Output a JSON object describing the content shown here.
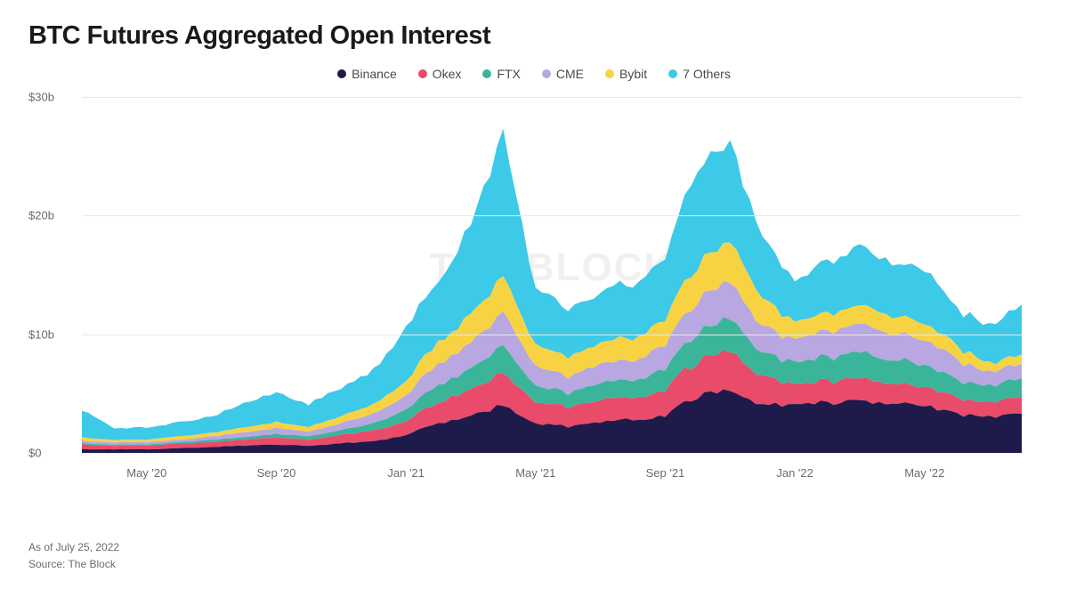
{
  "title": "BTC Futures Aggregated Open Interest",
  "watermark": "THE BLOCK",
  "footer_date": "As of July 25, 2022",
  "footer_source": "Source: The Block",
  "chart": {
    "type": "stacked-area",
    "background_color": "#ffffff",
    "grid_color": "#e8e8e8",
    "text_color": "#6b6b6b",
    "title_color": "#1a1a1a",
    "title_fontsize": 29,
    "label_fontsize": 13,
    "ylim": [
      0,
      30
    ],
    "ytick_step": 10,
    "yticks": [
      {
        "v": 0,
        "label": "$0"
      },
      {
        "v": 10,
        "label": "$10b"
      },
      {
        "v": 20,
        "label": "$20b"
      },
      {
        "v": 30,
        "label": "$30b"
      }
    ],
    "xticks": [
      {
        "idx": 2,
        "label": "May '20"
      },
      {
        "idx": 6,
        "label": "Sep '20"
      },
      {
        "idx": 10,
        "label": "Jan '21"
      },
      {
        "idx": 14,
        "label": "May '21"
      },
      {
        "idx": 18,
        "label": "Sep '21"
      },
      {
        "idx": 22,
        "label": "Jan '22"
      },
      {
        "idx": 26,
        "label": "May '22"
      }
    ],
    "n_points": 30,
    "series": [
      {
        "name": "Binance",
        "color": "#1e1a4a"
      },
      {
        "name": "Okex",
        "color": "#e94b6a"
      },
      {
        "name": "FTX",
        "color": "#3bb59a"
      },
      {
        "name": "CME",
        "color": "#b8a7e0"
      },
      {
        "name": "Bybit",
        "color": "#f7d344"
      },
      {
        "name": "7 Others",
        "color": "#3dc9e8"
      }
    ],
    "data_comment": "Values in $b. Each row is one time-point, columns match series order above.",
    "stacked_values": [
      [
        0.3,
        0.4,
        0.1,
        0.2,
        0.3,
        2.3
      ],
      [
        0.3,
        0.3,
        0.1,
        0.2,
        0.2,
        1.0
      ],
      [
        0.3,
        0.3,
        0.1,
        0.2,
        0.2,
        1.0
      ],
      [
        0.4,
        0.4,
        0.1,
        0.2,
        0.3,
        1.2
      ],
      [
        0.5,
        0.4,
        0.2,
        0.3,
        0.3,
        1.4
      ],
      [
        0.6,
        0.5,
        0.2,
        0.4,
        0.4,
        2.0
      ],
      [
        0.7,
        0.6,
        0.3,
        0.5,
        0.5,
        2.5
      ],
      [
        0.6,
        0.5,
        0.3,
        0.4,
        0.4,
        1.9
      ],
      [
        0.8,
        0.7,
        0.4,
        0.6,
        0.6,
        2.4
      ],
      [
        1.0,
        0.9,
        0.6,
        0.8,
        0.8,
        2.9
      ],
      [
        1.5,
        1.2,
        1.0,
        1.2,
        1.2,
        4.4
      ],
      [
        2.5,
        1.8,
        1.5,
        1.8,
        1.8,
        5.1
      ],
      [
        3.2,
        2.2,
        1.8,
        2.2,
        2.4,
        7.7
      ],
      [
        4.0,
        2.8,
        2.2,
        2.8,
        3.0,
        12.2
      ],
      [
        2.5,
        1.8,
        1.4,
        1.6,
        1.8,
        4.9
      ],
      [
        2.2,
        1.6,
        1.2,
        1.4,
        1.6,
        4.0
      ],
      [
        2.6,
        1.8,
        1.4,
        1.6,
        1.8,
        4.3
      ],
      [
        2.8,
        1.9,
        1.5,
        1.7,
        1.9,
        4.7
      ],
      [
        3.2,
        2.2,
        1.8,
        2.0,
        2.2,
        5.1
      ],
      [
        4.8,
        3.0,
        2.4,
        2.8,
        3.0,
        8.0
      ],
      [
        5.5,
        3.4,
        2.8,
        3.2,
        3.4,
        8.2
      ],
      [
        4.0,
        2.4,
        2.0,
        2.2,
        2.4,
        5.0
      ],
      [
        4.0,
        1.7,
        1.9,
        2.0,
        1.4,
        3.5
      ],
      [
        4.2,
        1.8,
        2.0,
        2.2,
        1.5,
        4.3
      ],
      [
        4.5,
        1.9,
        2.2,
        2.4,
        1.6,
        4.9
      ],
      [
        4.2,
        1.7,
        2.0,
        2.2,
        1.5,
        4.4
      ],
      [
        4.0,
        1.6,
        1.9,
        2.1,
        1.4,
        4.5
      ],
      [
        3.2,
        1.3,
        1.5,
        1.7,
        1.2,
        3.1
      ],
      [
        3.0,
        1.2,
        1.4,
        1.1,
        0.7,
        3.1
      ],
      [
        3.3,
        1.4,
        1.6,
        1.2,
        0.8,
        4.2
      ]
    ],
    "jitter_seed": 17,
    "sub_steps": 5
  }
}
